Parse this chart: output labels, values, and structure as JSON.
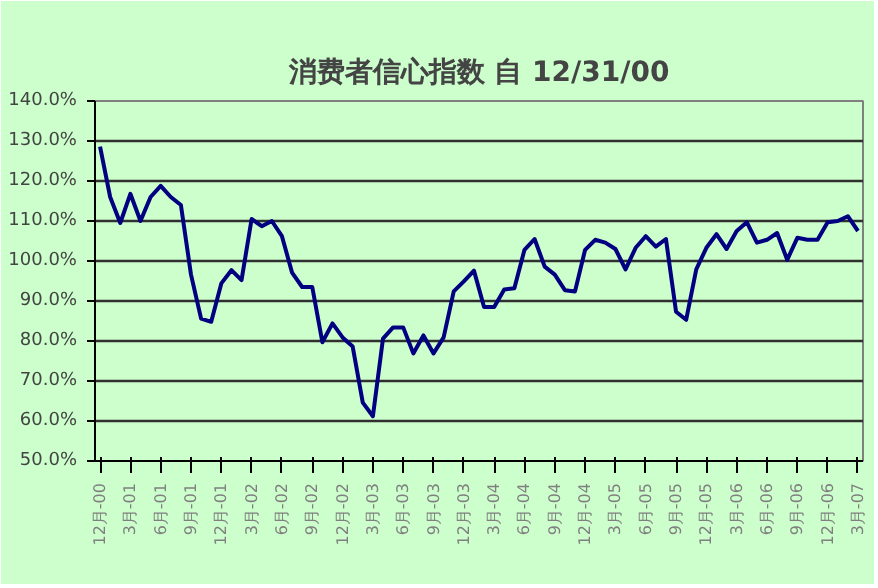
{
  "chart_data": {
    "type": "line",
    "title": "消费者信心指数 自 12/31/00",
    "categories": [
      "12月-00",
      null,
      null,
      "3月-01",
      null,
      null,
      "6月-01",
      null,
      null,
      "9月-01",
      null,
      null,
      "12月-01",
      null,
      null,
      "3月-02",
      null,
      null,
      "6月-02",
      null,
      null,
      "9月-02",
      null,
      null,
      "12月-02",
      null,
      null,
      "3月-03",
      null,
      null,
      "6月-03",
      null,
      null,
      "9月-03",
      null,
      null,
      "12月-03",
      null,
      null,
      "3月-04",
      null,
      null,
      "6月-04",
      null,
      null,
      "9月-04",
      null,
      null,
      "12月-04",
      null,
      null,
      "3月-05",
      null,
      null,
      "6月-05",
      null,
      null,
      "9月-05",
      null,
      null,
      "12月-05",
      null,
      null,
      "3月-06",
      null,
      null,
      "6月-06",
      null,
      null,
      "9月-06",
      null,
      null,
      "12月-06",
      null,
      null,
      "3月-07"
    ],
    "series": [
      {
        "color": "#000080",
        "values": [
          128.6,
          116,
          109.5,
          116.8,
          110,
          116,
          118.8,
          116,
          114,
          96.6,
          85.6,
          84.8,
          94.4,
          97.7,
          95.2,
          110.5,
          108.7,
          110,
          106.2,
          97.1,
          93.5,
          93.5,
          79.7,
          84.4,
          80.9,
          78.6,
          64.6,
          61.2,
          80.6,
          83.4,
          83.4,
          76.9,
          81.4,
          76.9,
          80.9,
          92.4,
          94.9,
          97.6,
          88.5,
          88.5,
          92.9,
          93.2,
          102.8,
          105.5,
          98.6,
          96.6,
          92.7,
          92.4,
          102.8,
          105.3,
          104.6,
          103,
          97.9,
          103.3,
          106.2,
          103.6,
          105.5,
          87.3,
          85.3,
          97.9,
          103.3,
          106.7,
          103,
          107.5,
          109.7,
          104.6,
          105.3,
          107,
          100.3,
          105.8,
          105.3,
          105.3,
          109.7,
          110,
          111.2,
          107.5
        ]
      }
    ],
    "ylim": [
      50,
      140
    ],
    "yticks": [
      {
        "value": 50,
        "label": "50.0%"
      },
      {
        "value": 60,
        "label": "60.0%"
      },
      {
        "value": 70,
        "label": "70.0%"
      },
      {
        "value": 80,
        "label": "80.0%"
      },
      {
        "value": 90,
        "label": "90.0%"
      },
      {
        "value": 100,
        "label": "100.0%"
      },
      {
        "value": 110,
        "label": "110.0%"
      },
      {
        "value": 120,
        "label": "120.0%"
      },
      {
        "value": 130,
        "label": "130.0%"
      },
      {
        "value": 140,
        "label": "140.0%"
      }
    ],
    "grid": "y",
    "marker": "none",
    "line_style": "solid"
  }
}
